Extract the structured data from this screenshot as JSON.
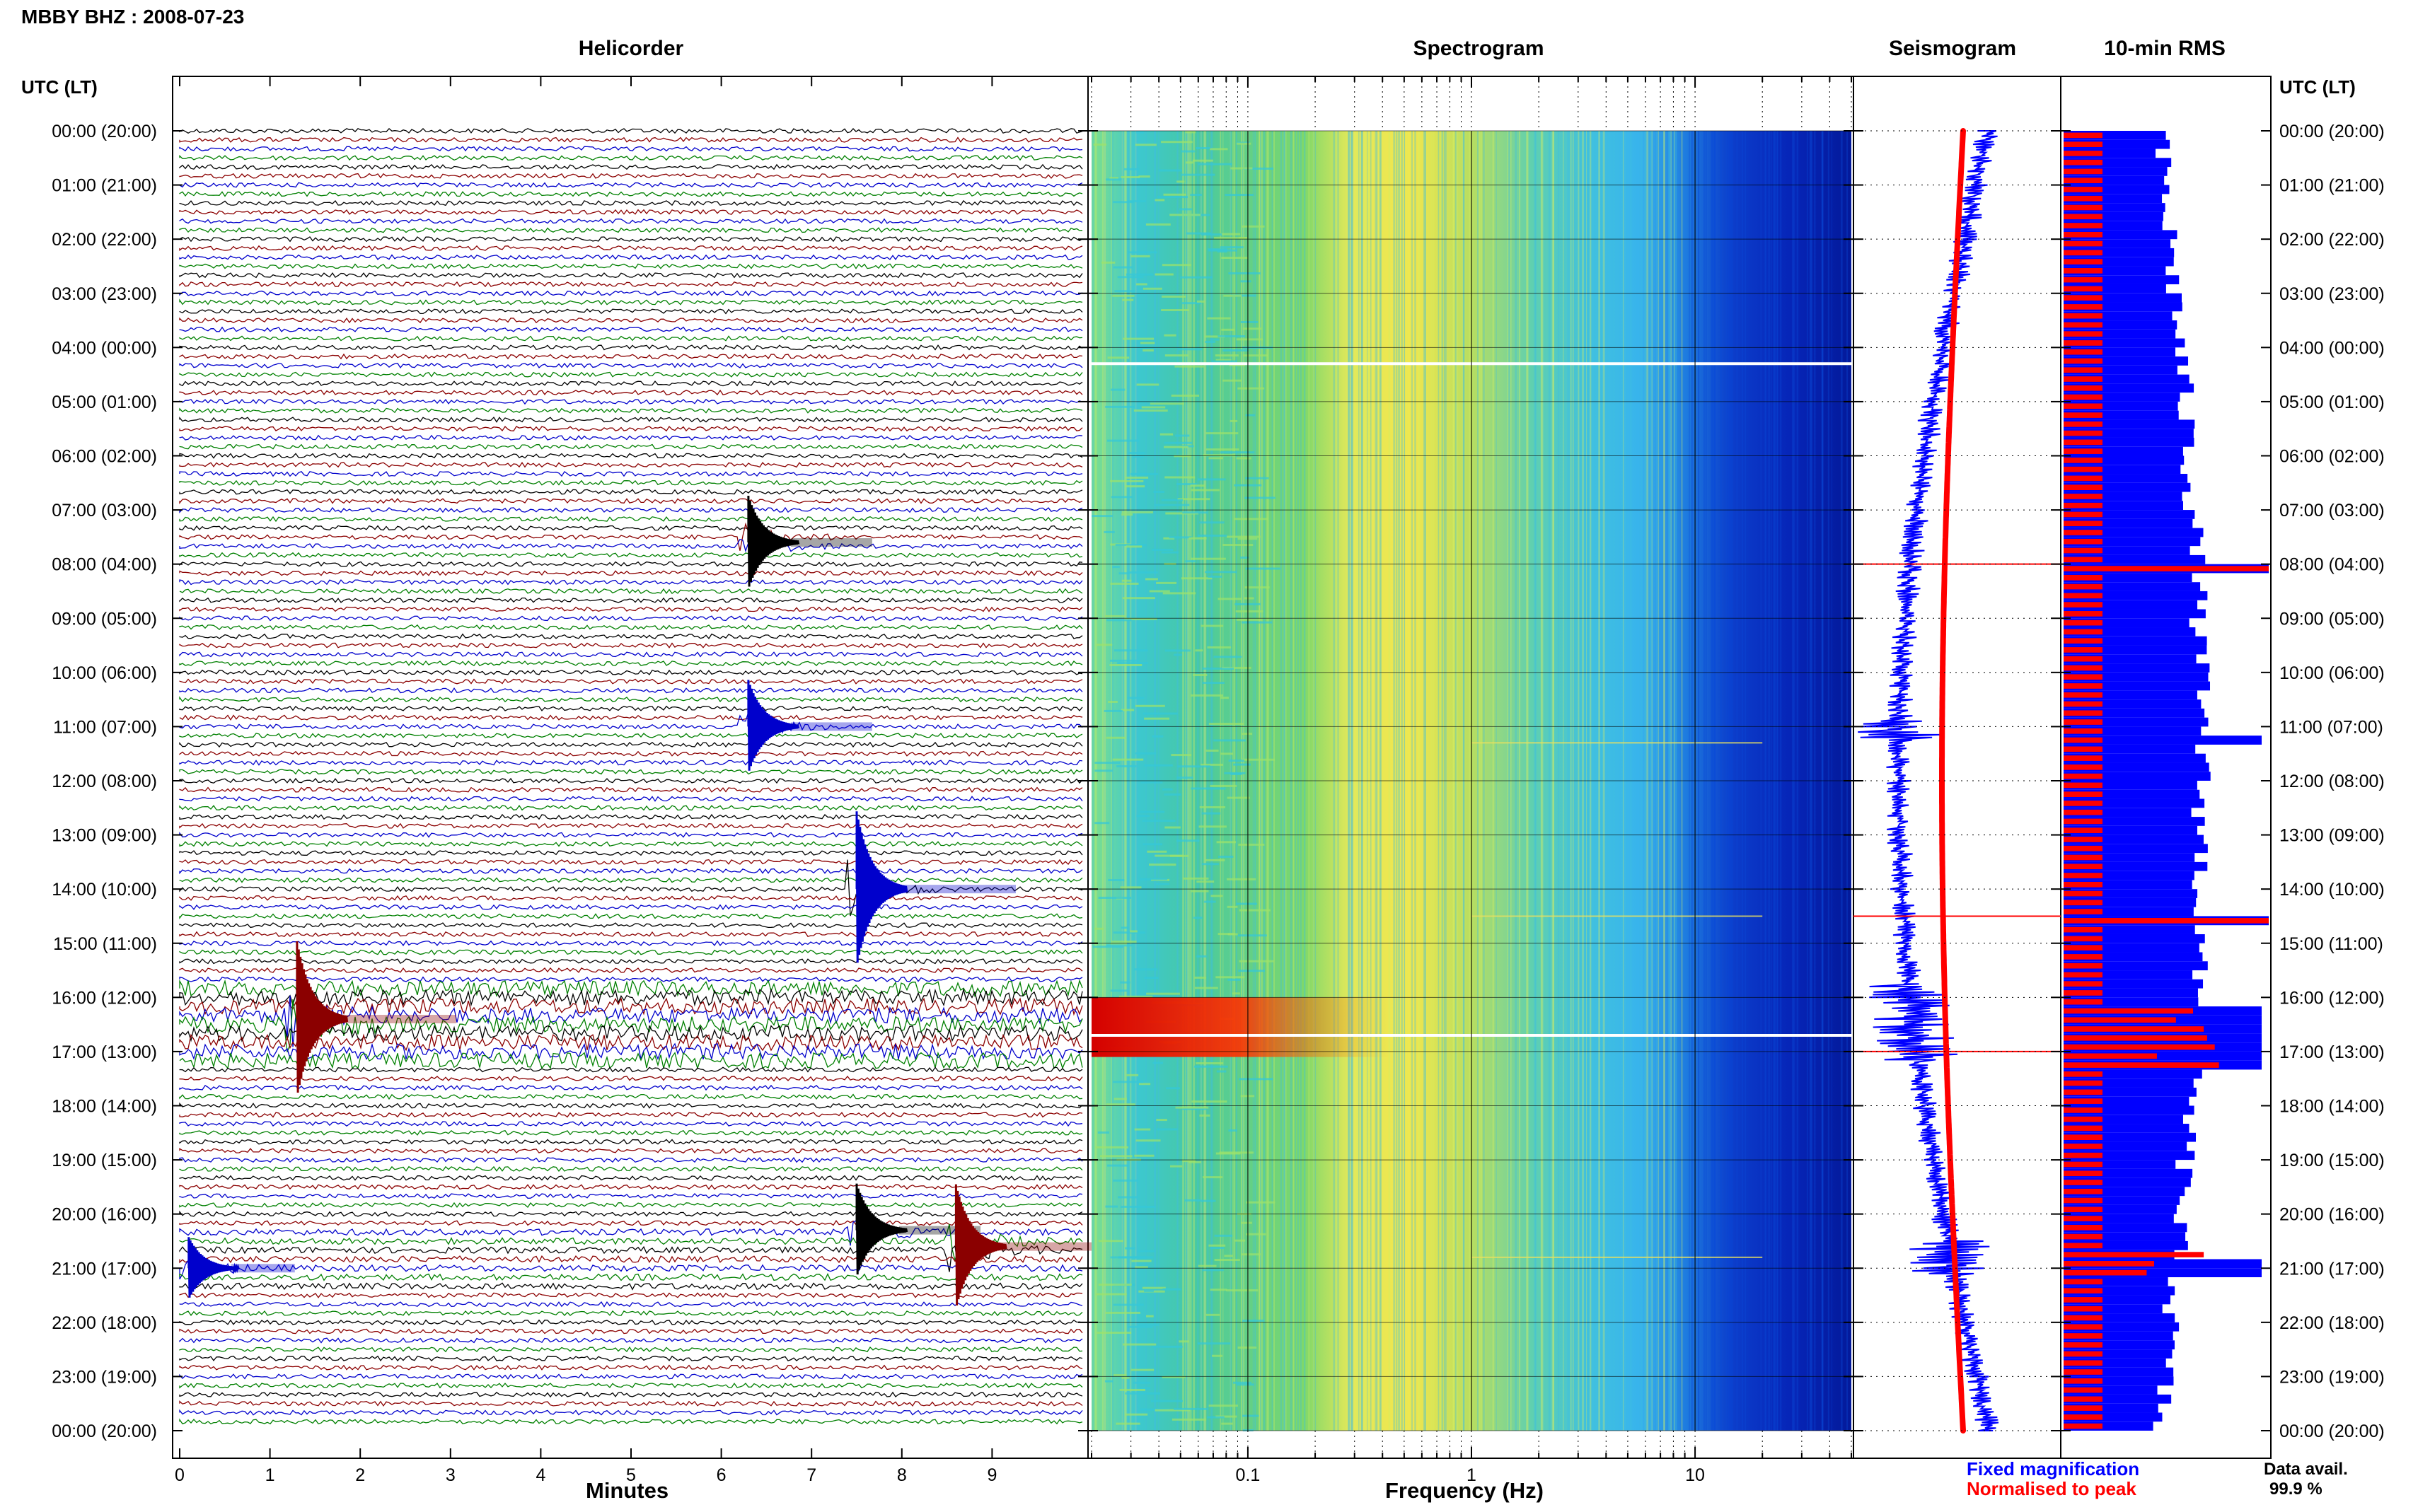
{
  "header": {
    "station": "MBBY BHZ : 2008-07-23"
  },
  "panels": {
    "helicorder": "Helicorder",
    "spectrogram": "Spectrogram",
    "seismogram": "Seismogram",
    "rms": "10-min RMS"
  },
  "axis_titles": {
    "left_time": "UTC (LT)",
    "right_time": "UTC (LT)",
    "helicorder_x": "Minutes",
    "spectrogram_x": "Frequency (Hz)"
  },
  "legend": {
    "fixed": "Fixed magnification",
    "normalised": "Normalised to peak"
  },
  "availability": {
    "label": "Data avail.",
    "value": "99.9 %"
  },
  "colors": {
    "fixed": "#0000ff",
    "normalised": "#ff0000",
    "trace_black": "#000000",
    "trace_red": "#8b0000",
    "trace_blue": "#0000cc",
    "trace_green": "#008000"
  },
  "chart_data": {
    "type": "heatmap",
    "time_ticks": [
      "00:00 (20:00)",
      "01:00 (21:00)",
      "02:00 (22:00)",
      "03:00 (23:00)",
      "04:00 (00:00)",
      "05:00 (01:00)",
      "06:00 (02:00)",
      "07:00 (03:00)",
      "08:00 (04:00)",
      "09:00 (05:00)",
      "10:00 (06:00)",
      "11:00 (07:00)",
      "12:00 (08:00)",
      "13:00 (09:00)",
      "14:00 (10:00)",
      "15:00 (11:00)",
      "16:00 (12:00)",
      "17:00 (13:00)",
      "18:00 (14:00)",
      "19:00 (15:00)",
      "20:00 (16:00)",
      "21:00 (17:00)",
      "22:00 (18:00)",
      "23:00 (19:00)",
      "00:00 (20:00)"
    ],
    "helicorder": {
      "x_ticks": [
        "0",
        "1",
        "2",
        "3",
        "4",
        "5",
        "6",
        "7",
        "8",
        "9"
      ],
      "xlim": [
        0,
        10
      ],
      "events": [
        {
          "hour": 7.6,
          "minute": 6.3,
          "amplitude": 3,
          "color": "black"
        },
        {
          "hour": 11.0,
          "minute": 6.3,
          "amplitude": 3,
          "color": "blue"
        },
        {
          "hour": 14.0,
          "minute": 7.5,
          "amplitude": 5,
          "color": "blue"
        },
        {
          "hour": 16.4,
          "minute": 1.3,
          "amplitude": 5,
          "color": "red"
        },
        {
          "hour": 20.3,
          "minute": 7.5,
          "amplitude": 3,
          "color": "black"
        },
        {
          "hour": 20.6,
          "minute": 8.6,
          "amplitude": 4,
          "color": "red"
        },
        {
          "hour": 21.0,
          "minute": 0.1,
          "amplitude": 2,
          "color": "blue"
        }
      ]
    },
    "spectrogram": {
      "x_ticks": [
        "0.1",
        "1",
        "10"
      ],
      "x_scale": "log",
      "xlim": [
        0.02,
        50
      ]
    },
    "seismogram": {
      "series": [
        {
          "name": "Fixed magnification",
          "color": "#0000ff"
        },
        {
          "name": "Normalised to peak",
          "color": "#ff0000"
        }
      ]
    },
    "rms": {
      "interval": "10-min",
      "series": [
        {
          "name": "Fixed magnification",
          "color": "#0000ff"
        },
        {
          "name": "Normalised to peak",
          "color": "#ff0000"
        }
      ]
    }
  }
}
